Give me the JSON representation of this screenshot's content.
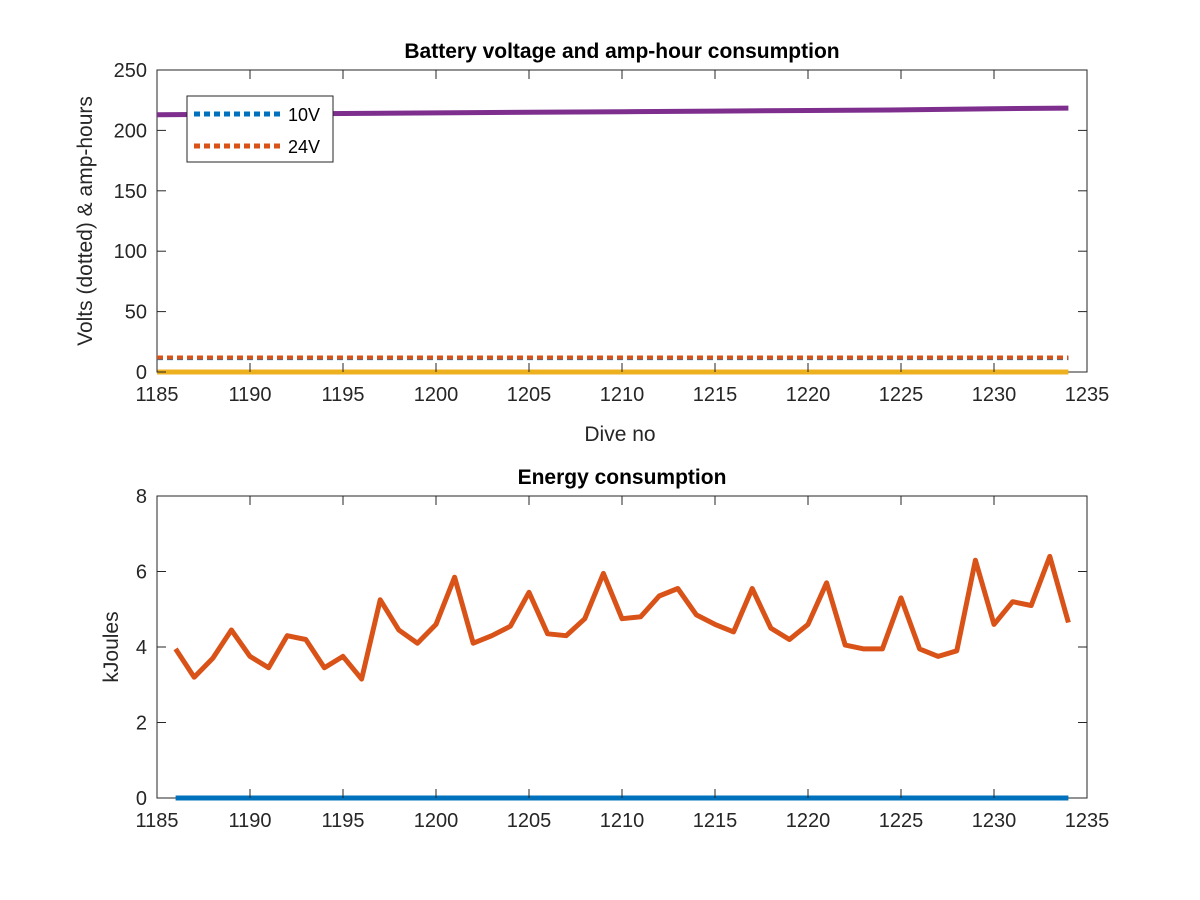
{
  "chart_data": [
    {
      "type": "line",
      "title": "Battery voltage and amp-hour consumption",
      "xlabel": "Dive no",
      "ylabel": "Volts (dotted) & amp-hours",
      "xlim": [
        1185,
        1235
      ],
      "ylim": [
        0,
        250
      ],
      "xticks": [
        1185,
        1190,
        1195,
        1200,
        1205,
        1210,
        1215,
        1220,
        1225,
        1230,
        1235
      ],
      "yticks": [
        0,
        50,
        100,
        150,
        200,
        250
      ],
      "grid": false,
      "legend": {
        "placement": "top-left",
        "entries": [
          "10V",
          "24V"
        ]
      },
      "series": [
        {
          "name": "10V",
          "style": "dotted",
          "color": "#0072BD",
          "x": [
            1185,
            1234
          ],
          "y": [
            11.5,
            11.5
          ]
        },
        {
          "name": "24V",
          "style": "dotted",
          "color": "#D95319",
          "x": [
            1185,
            1234
          ],
          "y": [
            12,
            12
          ]
        },
        {
          "style": "solid",
          "color": "#EDB120",
          "x": [
            1185,
            1234
          ],
          "y": [
            0,
            0
          ]
        },
        {
          "style": "solid",
          "color": "#7E2F8E",
          "x": [
            1185,
            1190,
            1195,
            1200,
            1205,
            1210,
            1215,
            1220,
            1225,
            1230,
            1234
          ],
          "y": [
            213,
            213.5,
            214,
            214.5,
            215,
            215.5,
            216,
            216.5,
            217,
            218,
            218.5
          ]
        }
      ]
    },
    {
      "type": "line",
      "title": "Energy consumption",
      "xlabel": "",
      "ylabel": "kJoules",
      "xlim": [
        1185,
        1235
      ],
      "ylim": [
        0,
        8
      ],
      "xticks": [
        1185,
        1190,
        1195,
        1200,
        1205,
        1210,
        1215,
        1220,
        1225,
        1230,
        1235
      ],
      "yticks": [
        0,
        2,
        4,
        6,
        8
      ],
      "grid": false,
      "series": [
        {
          "style": "solid",
          "color": "#D95319",
          "x": [
            1186,
            1187,
            1188,
            1189,
            1190,
            1191,
            1192,
            1193,
            1194,
            1195,
            1196,
            1197,
            1198,
            1199,
            1200,
            1201,
            1202,
            1203,
            1204,
            1205,
            1206,
            1207,
            1208,
            1209,
            1210,
            1211,
            1212,
            1213,
            1214,
            1215,
            1216,
            1217,
            1218,
            1219,
            1220,
            1221,
            1222,
            1223,
            1224,
            1225,
            1226,
            1227,
            1228,
            1229,
            1230,
            1231,
            1232,
            1233,
            1234
          ],
          "y": [
            3.95,
            3.2,
            3.7,
            4.45,
            3.75,
            3.45,
            4.3,
            4.2,
            3.45,
            3.75,
            3.15,
            5.25,
            4.45,
            4.1,
            4.6,
            5.85,
            4.1,
            4.3,
            4.55,
            5.45,
            4.35,
            4.3,
            4.75,
            5.95,
            4.75,
            4.8,
            5.35,
            5.55,
            4.85,
            4.6,
            4.4,
            5.55,
            4.5,
            4.2,
            4.6,
            5.7,
            4.05,
            3.95,
            3.95,
            5.3,
            3.95,
            3.75,
            3.9,
            6.3,
            4.6,
            5.2,
            5.1,
            6.4,
            4.65
          ]
        },
        {
          "style": "solid",
          "color": "#0072BD",
          "x": [
            1186,
            1234
          ],
          "y": [
            0,
            0
          ]
        }
      ]
    }
  ]
}
